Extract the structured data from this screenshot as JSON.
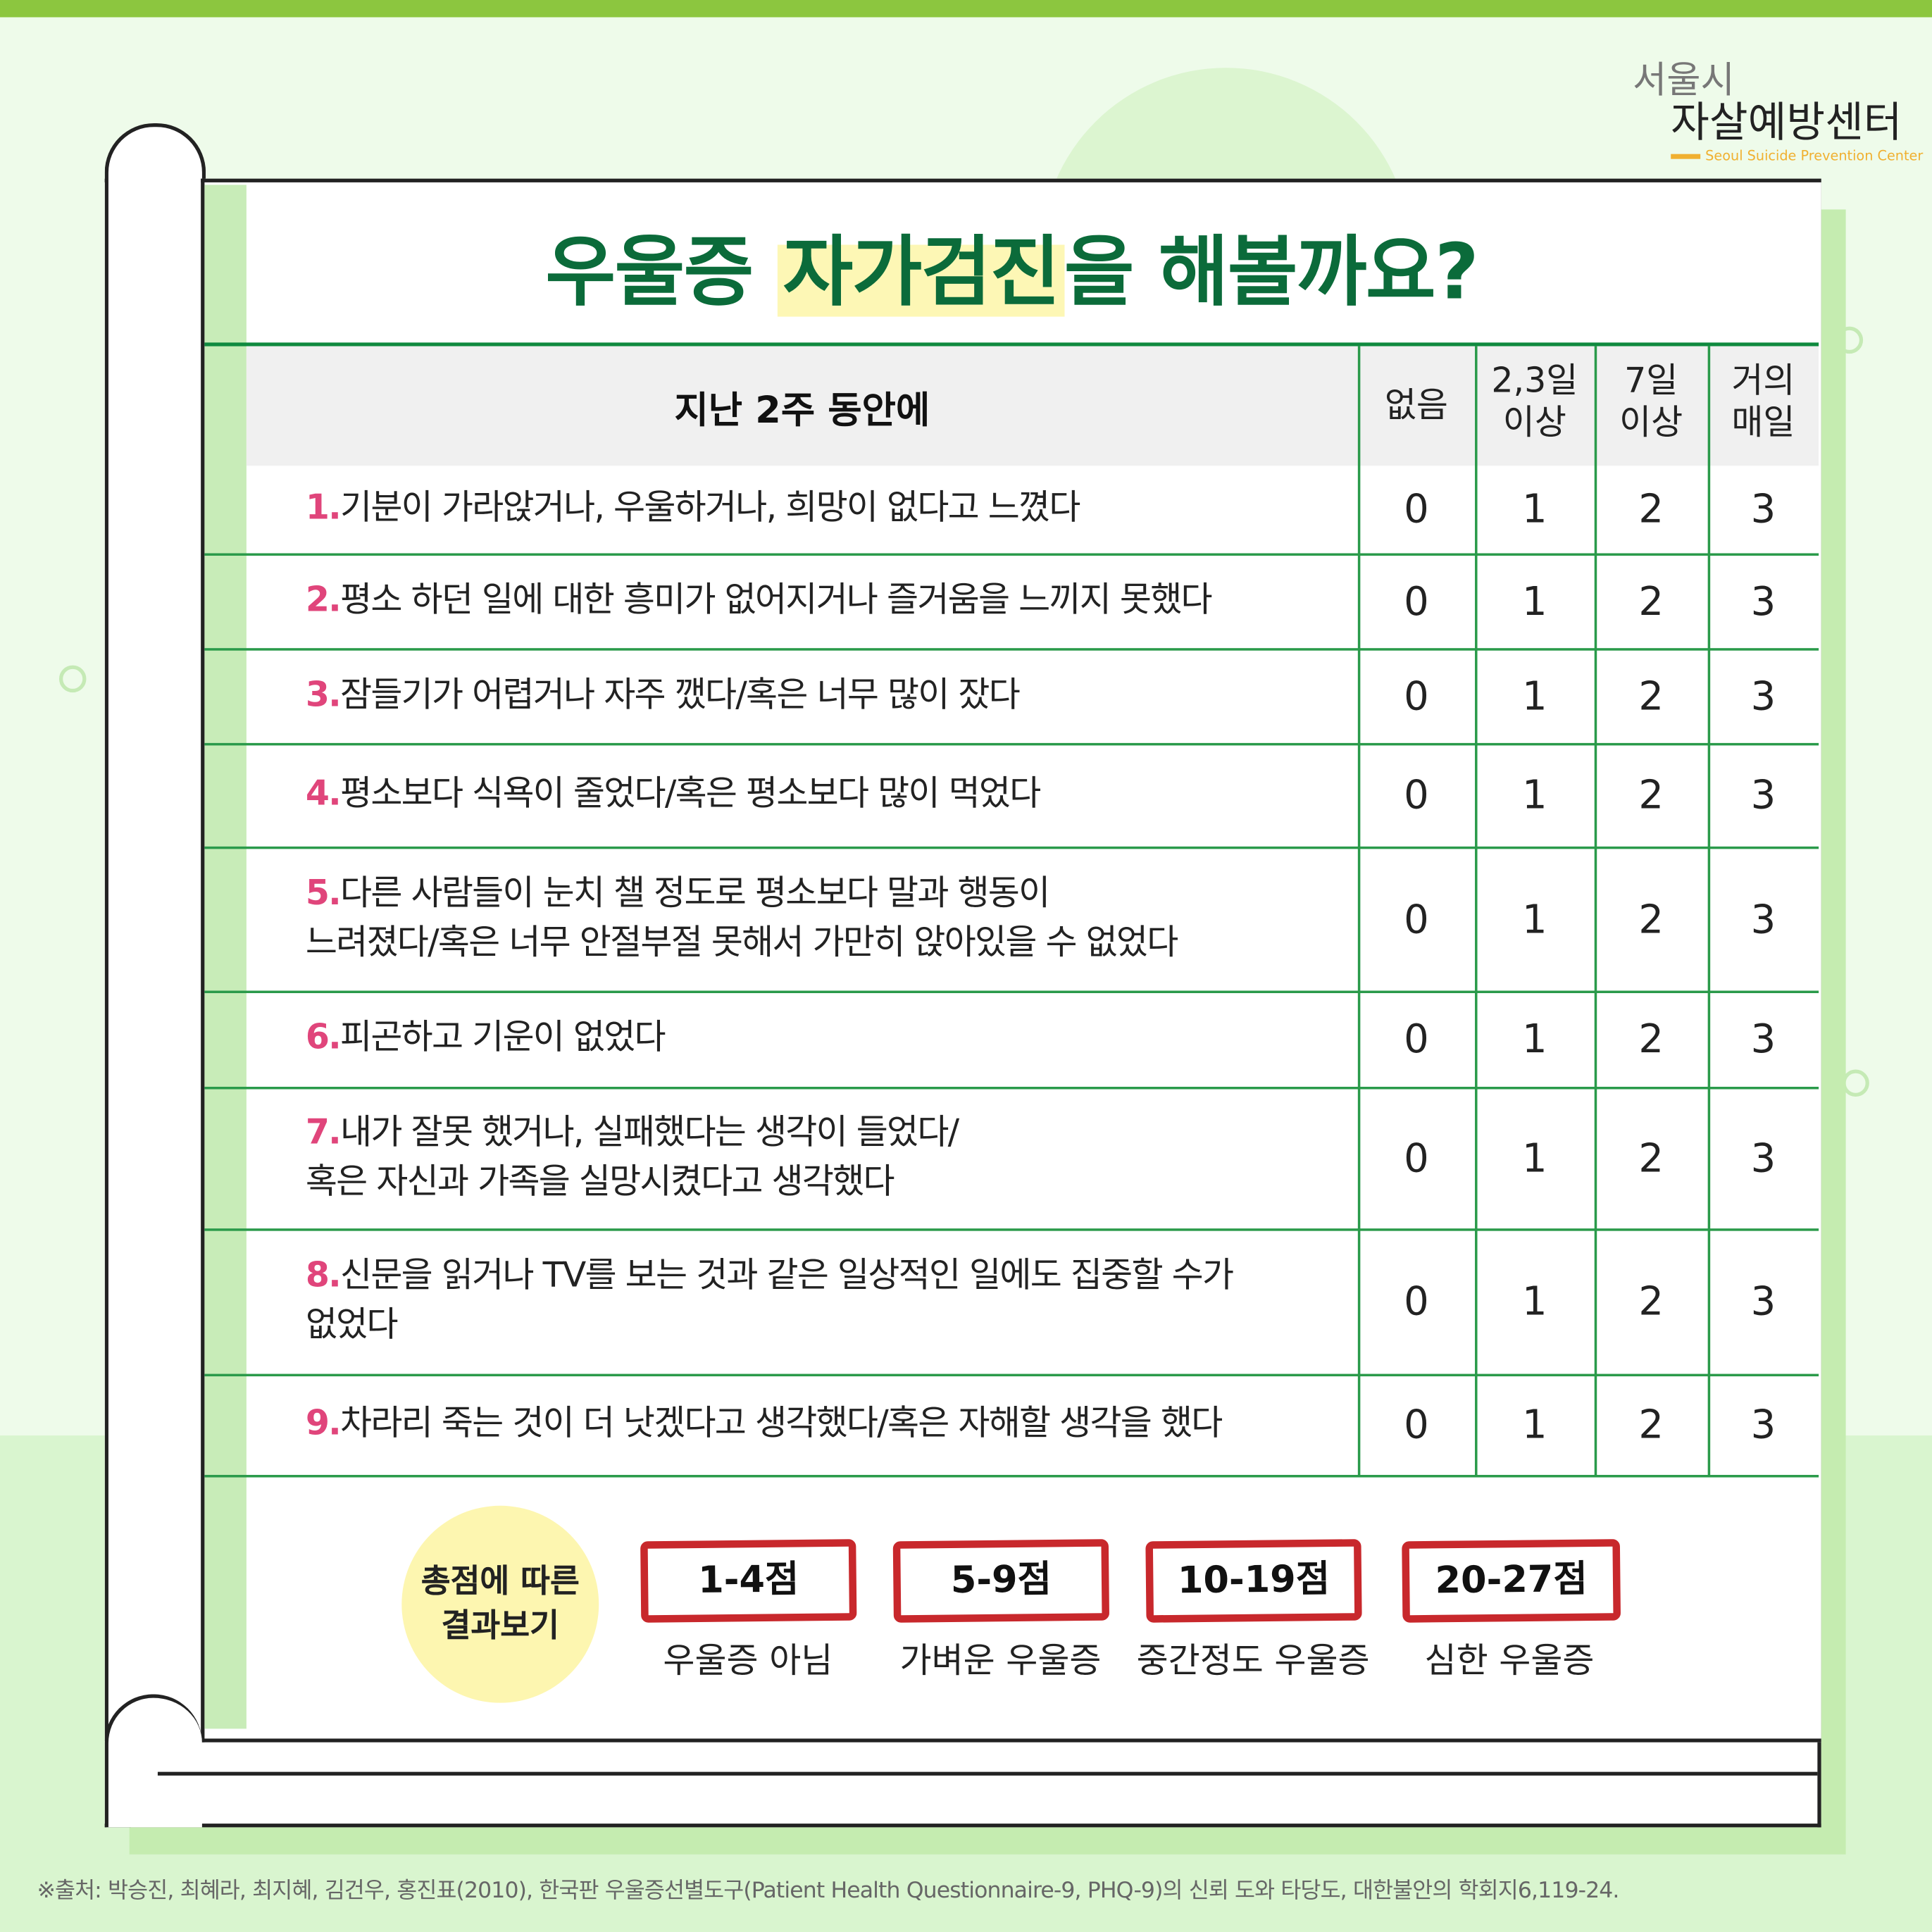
{
  "logo": {
    "line1": "서울시",
    "line2": "자살예방센터",
    "english": "Seoul Suicide Prevention Center"
  },
  "title": {
    "part1": "우울증 ",
    "highlight": "자가검진",
    "part2": "을 해볼까요?"
  },
  "table": {
    "header": "지난 2주 동안에",
    "columns": [
      {
        "l1": "없음",
        "l2": ""
      },
      {
        "l1": "2,3일",
        "l2": "이상"
      },
      {
        "l1": "7일",
        "l2": "이상"
      },
      {
        "l1": "거의",
        "l2": "매일"
      }
    ],
    "scores": [
      "0",
      "1",
      "2",
      "3"
    ],
    "rows": [
      {
        "num": "1.",
        "l1": "기분이 가라앉거나, 우울하거나, 희망이 없다고 느꼈다",
        "l2": ""
      },
      {
        "num": "2.",
        "l1": "평소 하던 일에 대한 흥미가 없어지거나 즐거움을 느끼지 못했다",
        "l2": ""
      },
      {
        "num": "3.",
        "l1": "잠들기가 어렵거나 자주 깼다/혹은 너무 많이 잤다",
        "l2": ""
      },
      {
        "num": "4.",
        "l1": "평소보다 식욕이 줄었다/혹은 평소보다 많이 먹었다",
        "l2": ""
      },
      {
        "num": "5.",
        "l1": "다른 사람들이 눈치 챌 정도로 평소보다 말과 행동이",
        "l2": "느려졌다/혹은 너무 안절부절 못해서 가만히 앉아있을 수 없었다"
      },
      {
        "num": "6.",
        "l1": "피곤하고 기운이 없었다",
        "l2": ""
      },
      {
        "num": "7.",
        "l1": "내가 잘못 했거나, 실패했다는 생각이 들었다/",
        "l2": "혹은 자신과 가족을 실망시켰다고 생각했다"
      },
      {
        "num": "8.",
        "l1": "신문을 읽거나 TV를 보는 것과 같은 일상적인 일에도 집중할 수가",
        "l2": "없었다"
      },
      {
        "num": "9.",
        "l1": "차라리 죽는 것이 더 낫겠다고 생각했다/혹은 자해할 생각을 했다",
        "l2": ""
      }
    ]
  },
  "results": {
    "circle_l1": "총점에 따른",
    "circle_l2": "결과보기",
    "items": [
      {
        "range": "1-4점",
        "label": "우울증 아님"
      },
      {
        "range": "5-9점",
        "label": "가벼운 우울증"
      },
      {
        "range": "10-19점",
        "label": "중간정도 우울증"
      },
      {
        "range": "20-27점",
        "label": "심한 우울증"
      }
    ]
  },
  "footer": "※출처: 박승진, 최혜라, 최지혜, 김건우, 홍진표(2010), 한국판 우울증선별도구(Patient Health Questionnaire-9, PHQ-9)의 신뢰 도와 타당도, 대한불안의 학회지6,119-24.",
  "colors": {
    "title": "#0b6b3a",
    "accent_green": "#8cc63f",
    "number_pink": "#e0457b",
    "box_red": "#c8282c",
    "highlight_yellow": "#fdf7b5"
  }
}
